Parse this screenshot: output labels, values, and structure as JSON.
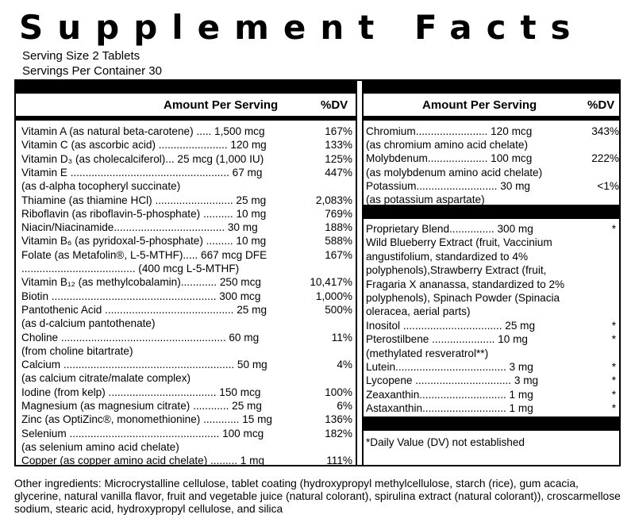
{
  "title": "Supplement Facts",
  "serving_size": "Serving Size 2 Tablets",
  "servings_per_container": "Servings Per Container 30",
  "left_header": {
    "amount": "Amount Per Serving",
    "dv": "%DV"
  },
  "right_header": {
    "amount": "Amount Per Serving",
    "dv": "%DV"
  },
  "left_rows": [
    {
      "text": "Vitamin A (as natural beta-carotene) ..... 1,500 mcg",
      "dv": "167%"
    },
    {
      "text": "Vitamin C (as ascorbic acid) ....................... 120 mg",
      "dv": "133%"
    },
    {
      "text": "Vitamin D₃ (as cholecalciferol)... 25 mcg (1,000 IU)",
      "dv": "125%"
    },
    {
      "text": "Vitamin E ..................................................... 67 mg",
      "dv": "447%"
    },
    {
      "text": "    (as d-alpha tocopheryl succinate)",
      "dv": ""
    },
    {
      "text": "Thiamine (as thiamine HCl) .......................... 25 mg",
      "dv": "2,083%"
    },
    {
      "text": "Riboflavin (as riboflavin-5-phosphate) .......... 10 mg",
      "dv": "769%"
    },
    {
      "text": "Niacin/Niacinamide..................................... 30 mg",
      "dv": "188%"
    },
    {
      "text": "Vitamin B₆ (as pyridoxal-5-phosphate) ......... 10 mg",
      "dv": "588%"
    },
    {
      "text": "Folate (as Metafolin®, L-5-MTHF)..... 667 mcg DFE",
      "dv": "167%"
    },
    {
      "text": "    ...................................... (400 mcg L-5-MTHF)",
      "dv": ""
    },
    {
      "text": "Vitamin B₁₂ (as methylcobalamin)............ 250 mcg",
      "dv": "10,417%"
    },
    {
      "text": "Biotin ....................................................... 300 mcg",
      "dv": "1,000%"
    },
    {
      "text": "Pantothenic Acid ........................................... 25 mg",
      "dv": "500%"
    },
    {
      "text": "    (as d-calcium pantothenate)",
      "dv": ""
    },
    {
      "text": "Choline  ....................................................... 60 mg",
      "dv": "11%"
    },
    {
      "text": "    (from choline bitartrate)",
      "dv": ""
    },
    {
      "text": "Calcium ......................................................... 50 mg",
      "dv": "4%"
    },
    {
      "text": "    (as calcium citrate/malate complex)",
      "dv": ""
    },
    {
      "text": "Iodine (from kelp) .................................... 150 mcg",
      "dv": "100%"
    },
    {
      "text": "Magnesium (as magnesium citrate) ............ 25 mg",
      "dv": "6%"
    },
    {
      "text": "Zinc (as OptiZinc®, monomethionine) ............ 15 mg",
      "dv": "136%"
    },
    {
      "text": "Selenium .................................................. 100 mcg",
      "dv": "182%"
    },
    {
      "text": "    (as selenium amino acid chelate)",
      "dv": ""
    },
    {
      "text": "Copper (as copper amino acid chelate) ......... 1 mg",
      "dv": "111%"
    }
  ],
  "right_rows_top": [
    {
      "text": "Chromium........................ 120 mcg",
      "dv": "343%"
    },
    {
      "text": "    (as chromium amino acid chelate)",
      "dv": ""
    },
    {
      "text": "Molybdenum.................... 100 mcg",
      "dv": "222%"
    },
    {
      "text": "    (as molybdenum amino acid chelate)",
      "dv": ""
    },
    {
      "text": "Potassium........................... 30 mg",
      "dv": "<1%"
    },
    {
      "text": "    (as potassium aspartate)",
      "dv": ""
    }
  ],
  "right_rows_bottom": [
    {
      "text": "Proprietary Blend............... 300 mg",
      "dv": "*"
    },
    {
      "text": "    Wild Blueberry Extract (fruit, Vaccinium",
      "dv": ""
    },
    {
      "text": "    angustifolium, standardized to 4%",
      "dv": ""
    },
    {
      "text": "    polyphenols),Strawberry Extract (fruit,",
      "dv": ""
    },
    {
      "text": "    Fragaria X ananassa, standardized to 2%",
      "dv": ""
    },
    {
      "text": "    polyphenols), Spinach Powder (Spinacia",
      "dv": ""
    },
    {
      "text": "    oleracea, aerial parts)",
      "dv": ""
    },
    {
      "text": "Inositol ................................. 25 mg",
      "dv": "*"
    },
    {
      "text": "Pterostilbene ..................... 10 mg",
      "dv": "*"
    },
    {
      "text": "    (methylated resveratrol**)",
      "dv": ""
    },
    {
      "text": "Lutein..................................... 3 mg",
      "dv": "*"
    },
    {
      "text": "Lycopene ................................ 3 mg",
      "dv": "*"
    },
    {
      "text": "Zeaxanthin............................. 1 mg",
      "dv": "*"
    },
    {
      "text": "Astaxanthin............................ 1 mg",
      "dv": "*"
    }
  ],
  "footnote": "*Daily Value (DV) not established",
  "other_ingredients": "Other ingredients: Microcrystalline cellulose,  tablet coating (hydroxypropyl methylcellulose, starch (rice), gum acacia, glycerine, natural vanilla flavor, fruit and vegetable juice (natural colorant), spirulina extract (natural colorant)), croscarmellose sodium, stearic acid, hydroxypropyl cellulose, and silica"
}
